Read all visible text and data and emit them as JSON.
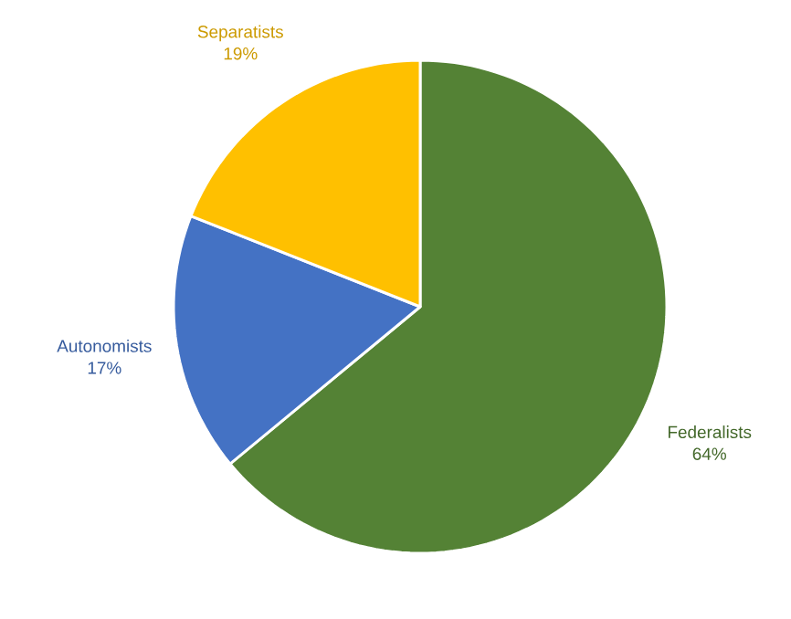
{
  "chart_data": {
    "type": "pie",
    "categories": [
      "Federalists",
      "Autonomists",
      "Separatists"
    ],
    "values": [
      64,
      17,
      19
    ],
    "value_labels": [
      "64%",
      "17%",
      "19%"
    ],
    "colors": [
      "#548235",
      "#4472c4",
      "#ffc000"
    ]
  }
}
